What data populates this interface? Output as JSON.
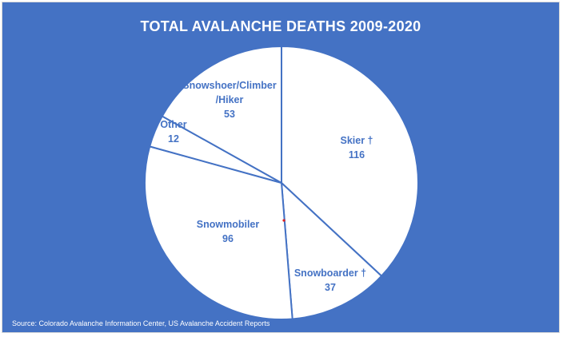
{
  "chart_data": {
    "type": "pie",
    "title": "TOTAL AVALANCHE DEATHS 2009-2020",
    "slices": [
      {
        "label": "Skier †",
        "value": 116
      },
      {
        "label": "Snowboarder †",
        "value": 37
      },
      {
        "label": "Snowmobiler",
        "value": 96
      },
      {
        "label": "Other",
        "value": 12
      },
      {
        "label": "Snowshoer/Climber /Hiker",
        "value": 53
      }
    ],
    "start_angle": "12 o'clock",
    "direction": "clockwise",
    "source": "Source: Colorado Avalanche Information Center, US Avalanche Accident Reports",
    "colors": {
      "background": "#4472C4",
      "slice_fill": "#FFFFFF",
      "slice_border": "#4472C4",
      "label_text": "#4472C4",
      "title_text": "#FFFFFF"
    }
  }
}
